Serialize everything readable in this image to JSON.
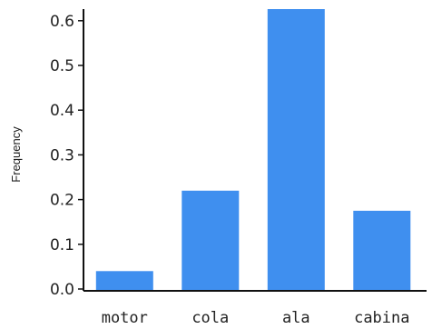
{
  "chart_data": {
    "type": "bar",
    "categories": [
      "motor",
      "cola",
      "ala",
      "cabina"
    ],
    "values": [
      0.04,
      0.22,
      0.63,
      0.175
    ],
    "title": "",
    "xlabel": "",
    "ylabel": "Frequency",
    "ylim": [
      0,
      0.62
    ],
    "yticks": [
      "0.0",
      "0.1",
      "0.2",
      "0.3",
      "0.4",
      "0.5",
      "0.6"
    ],
    "bar_color": "#3f8fef",
    "grid": false,
    "legend": "none"
  }
}
